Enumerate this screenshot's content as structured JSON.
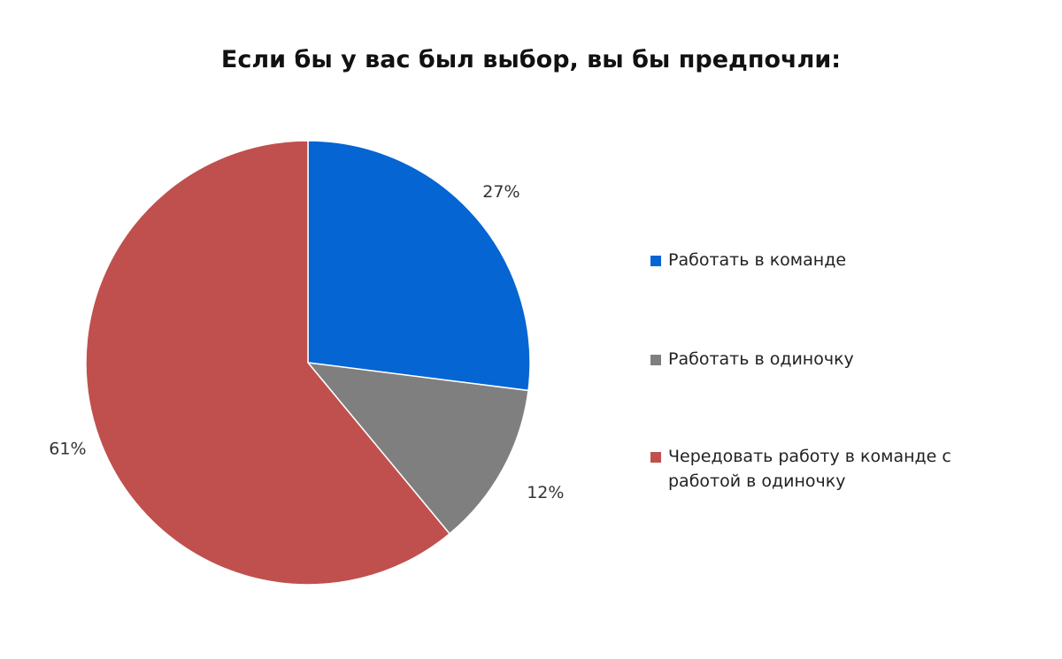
{
  "chart_data": {
    "type": "pie",
    "title": "Если бы у вас был выбор, вы бы предпочли:",
    "categories": [
      "Работать в команде",
      "Работать в одиночку",
      "Чередовать работу в команде с работой в одиночку"
    ],
    "values": [
      27,
      12,
      61
    ],
    "value_labels": [
      "27%",
      "12%",
      "61%"
    ],
    "colors": [
      "#0565D3",
      "#7F7F7F",
      "#C0504D"
    ],
    "legend_position": "right",
    "start_angle": "12 o'clock, clockwise"
  },
  "legend": {
    "items": [
      {
        "label": "Работать в команде",
        "color": "#0565D3"
      },
      {
        "label": "Работать в одиночку",
        "color": "#7F7F7F"
      },
      {
        "label": "Чередовать работу в команде с работой в одиночку",
        "color": "#C0504D"
      }
    ]
  }
}
